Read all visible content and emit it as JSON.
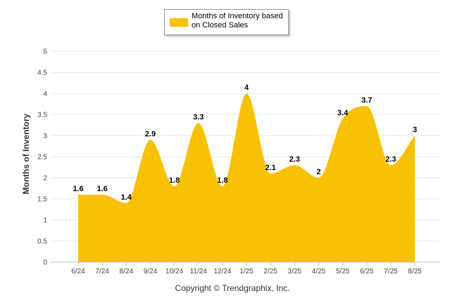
{
  "chart_data": {
    "type": "area",
    "categories": [
      "6/24",
      "7/24",
      "8/24",
      "9/24",
      "10/24",
      "11/24",
      "12/24",
      "1/25",
      "2/25",
      "3/25",
      "4/25",
      "5/25",
      "6/25",
      "7/25",
      "8/25"
    ],
    "series": [
      {
        "name": "Months of Inventory based on Closed Sales",
        "values": [
          1.6,
          1.6,
          1.4,
          2.9,
          1.8,
          3.3,
          1.8,
          4,
          2.1,
          2.3,
          2,
          3.4,
          3.7,
          2.3,
          3
        ],
        "labels": [
          "1.6",
          "1.6",
          "1.4",
          "2.9",
          "1.8",
          "3.3",
          "1.8",
          "4",
          "2.1",
          "2.3",
          "2",
          "3.4",
          "3.7",
          "2.3",
          "3"
        ],
        "color": "#F7C204"
      }
    ],
    "ylabel": "Months of Inventory",
    "ylim": [
      0,
      5
    ],
    "yticks": [
      "0",
      "0.5",
      "1",
      "1.5",
      "2",
      "2.5",
      "3",
      "3.5",
      "4",
      "4.5",
      "5"
    ],
    "grid": true,
    "legend_position": "top-center"
  },
  "footer": {
    "copyright": "Copyright © Trendgraphix, Inc."
  },
  "colors": {
    "area": "#F7C204",
    "grid": "#e6e6e6",
    "axis": "#c0c0c0",
    "text": "#333333"
  }
}
